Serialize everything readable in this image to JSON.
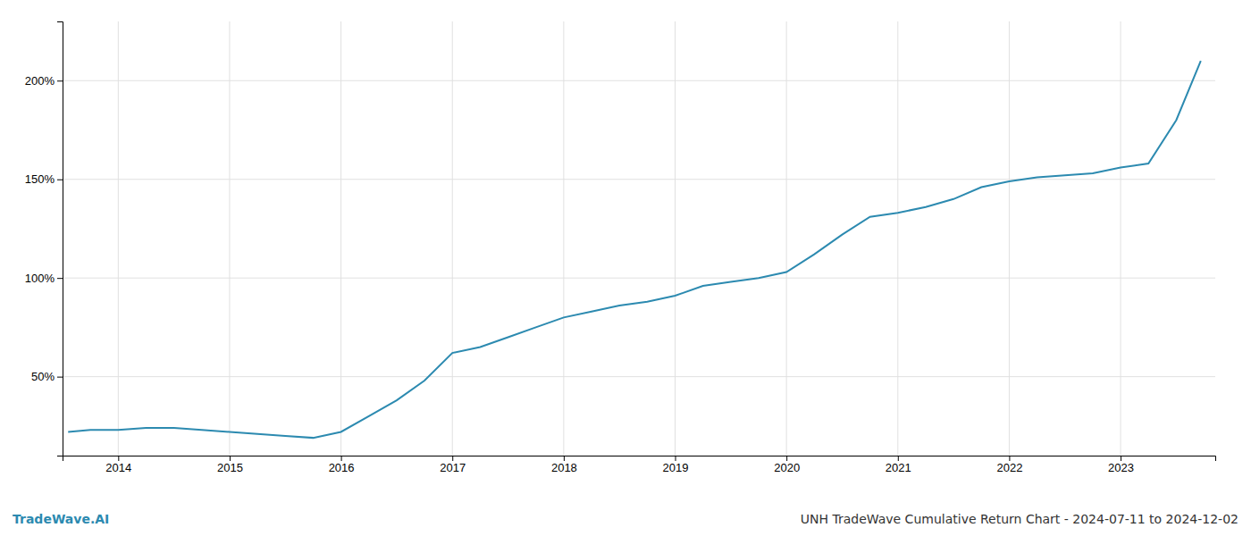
{
  "chart_data": {
    "type": "line",
    "x": [
      2013.55,
      2013.75,
      2014.0,
      2014.25,
      2014.5,
      2014.75,
      2015.0,
      2015.25,
      2015.5,
      2015.75,
      2016.0,
      2016.25,
      2016.5,
      2016.75,
      2017.0,
      2017.25,
      2017.5,
      2017.75,
      2018.0,
      2018.25,
      2018.5,
      2018.75,
      2019.0,
      2019.25,
      2019.5,
      2019.75,
      2020.0,
      2020.25,
      2020.5,
      2020.75,
      2021.0,
      2021.25,
      2021.5,
      2021.75,
      2022.0,
      2022.25,
      2022.5,
      2022.75,
      2023.0,
      2023.25,
      2023.5,
      2023.72
    ],
    "values": [
      22,
      23,
      23,
      24,
      24,
      23,
      22,
      21,
      20,
      19,
      22,
      30,
      38,
      48,
      62,
      65,
      70,
      75,
      80,
      83,
      86,
      88,
      91,
      96,
      98,
      100,
      103,
      112,
      122,
      131,
      133,
      136,
      140,
      146,
      149,
      151,
      152,
      153,
      156,
      158,
      180,
      210
    ],
    "color": "#2c8ab0",
    "xlim": [
      2013.5,
      2023.85
    ],
    "ylim": [
      10,
      230
    ],
    "xticks": [
      2014,
      2015,
      2016,
      2017,
      2018,
      2019,
      2020,
      2021,
      2022,
      2023
    ],
    "yticks": [
      {
        "value": 50,
        "label": "50%"
      },
      {
        "value": 100,
        "label": "100%"
      },
      {
        "value": 150,
        "label": "150%"
      },
      {
        "value": 200,
        "label": "200%"
      }
    ],
    "grid": true,
    "annotations": [
      {
        "text": "TradeWave.AI",
        "color": "#2c8ab0"
      },
      {
        "text": "UNH TradeWave Cumulative Return Chart - 2024-07-11 to 2024-12-02",
        "color": "#333333"
      }
    ]
  }
}
